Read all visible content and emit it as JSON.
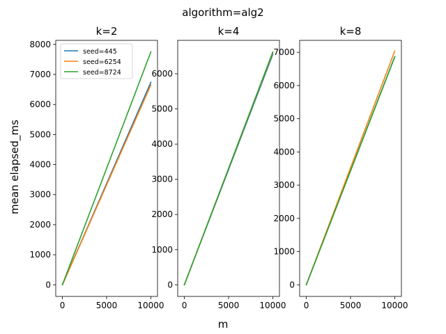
{
  "figure": {
    "suptitle": "algorithm=alg2",
    "xlabel": "m",
    "ylabel": "mean elapsed_ms"
  },
  "legend": {
    "placement": "upper-left of first panel",
    "entries": [
      {
        "label": "seed=445",
        "color": "#1f77b4"
      },
      {
        "label": "seed=6254",
        "color": "#ff7f0e"
      },
      {
        "label": "seed=8724",
        "color": "#2ca02c"
      }
    ]
  },
  "chart_data": [
    {
      "type": "line",
      "title": "k=2",
      "xlim": [
        -750,
        10750
      ],
      "ylim": [
        -387,
        8135
      ],
      "xticks": [
        0,
        5000,
        10000
      ],
      "yticks": [
        0,
        1000,
        2000,
        3000,
        4000,
        5000,
        6000,
        7000,
        8000
      ],
      "grid": false,
      "series": [
        {
          "name": "seed=445",
          "color": "#1f77b4",
          "x": [
            0,
            10000
          ],
          "y": [
            0,
            6740
          ]
        },
        {
          "name": "seed=6254",
          "color": "#ff7f0e",
          "x": [
            0,
            10000
          ],
          "y": [
            0,
            6650
          ]
        },
        {
          "name": "seed=8724",
          "color": "#2ca02c",
          "x": [
            0,
            10000
          ],
          "y": [
            0,
            7750
          ]
        }
      ]
    },
    {
      "type": "line",
      "title": "k=4",
      "xlim": [
        -750,
        10750
      ],
      "ylim": [
        -330,
        6950
      ],
      "xticks": [
        0,
        5000,
        10000
      ],
      "yticks": [
        0,
        1000,
        2000,
        3000,
        4000,
        5000,
        6000
      ],
      "grid": false,
      "series": [
        {
          "name": "seed=445",
          "color": "#1f77b4",
          "x": [
            0,
            10000
          ],
          "y": [
            0,
            6550
          ]
        },
        {
          "name": "seed=6254",
          "color": "#ff7f0e",
          "x": [
            0,
            10000
          ],
          "y": [
            0,
            6600
          ]
        },
        {
          "name": "seed=8724",
          "color": "#2ca02c",
          "x": [
            0,
            10000
          ],
          "y": [
            0,
            6620
          ]
        }
      ]
    },
    {
      "type": "line",
      "title": "k=8",
      "xlim": [
        -750,
        10750
      ],
      "ylim": [
        -350,
        7360
      ],
      "xticks": [
        0,
        5000,
        10000
      ],
      "yticks": [
        0,
        1000,
        2000,
        3000,
        4000,
        5000,
        6000,
        7000
      ],
      "grid": false,
      "series": [
        {
          "name": "seed=445",
          "color": "#1f77b4",
          "x": [
            0,
            10000
          ],
          "y": [
            0,
            6870
          ]
        },
        {
          "name": "seed=6254",
          "color": "#ff7f0e",
          "x": [
            0,
            10000
          ],
          "y": [
            0,
            7040
          ]
        },
        {
          "name": "seed=8724",
          "color": "#2ca02c",
          "x": [
            0,
            10000
          ],
          "y": [
            0,
            6860
          ]
        }
      ]
    }
  ]
}
